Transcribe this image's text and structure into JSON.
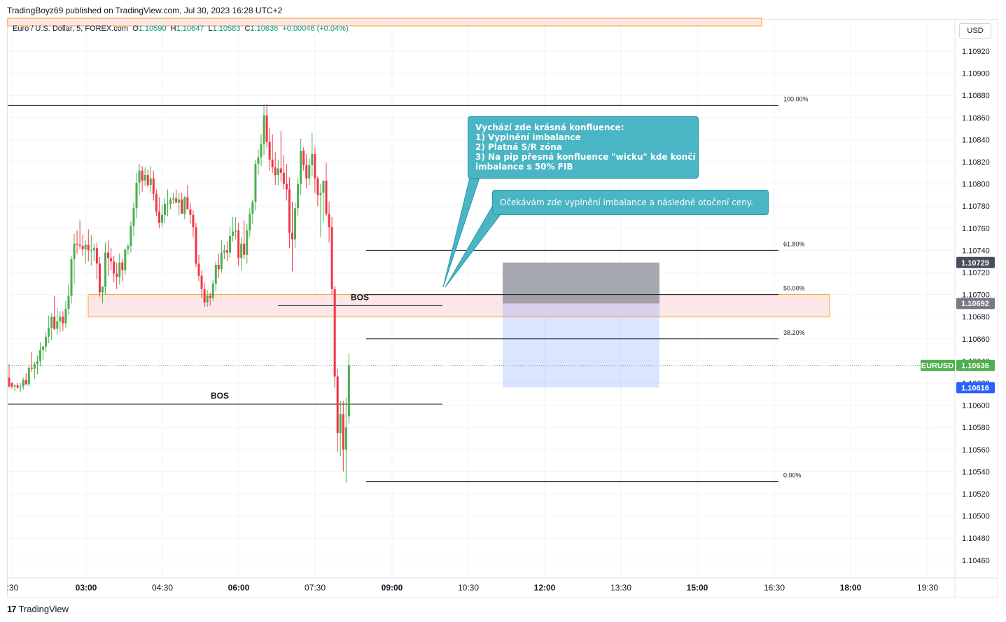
{
  "header": {
    "publisher_line": "TradingBoyz69 published on TradingView.com, Jul 30, 2023 16:28 UTC+2"
  },
  "legend": {
    "symbol": "Euro / U.S. Dollar, 5, FOREX.com",
    "o_label": "O",
    "o": "1.10590",
    "h_label": "H",
    "h": "1.10647",
    "l_label": "L",
    "l": "1.10583",
    "c_label": "C",
    "c": "1.10636",
    "change": "+0.00046 (+0.04%)"
  },
  "currency_button": "USD",
  "annotations": {
    "callout_1": {
      "lines": [
        "Vychází zde krásná konfluence:",
        "1) Vyplnění imbalance",
        "2) Platná S/R zóna",
        "3) Na pip přesná konfluence \"wicku\" kde končí",
        "imbalance s 50% FIB"
      ]
    },
    "callout_2": "Očekávám zde vyplnění imbalance a následné otočení ceny.",
    "bos_1": "BOS",
    "bos_2": "BOS"
  },
  "footer": {
    "brand": "TradingView",
    "logo_mark": "17"
  },
  "colors": {
    "up": "#4caf50",
    "down": "#f23645",
    "callout_bg": "#4ab5c4",
    "zone_fill": "#fde6e8",
    "zone_border": "#f5a623",
    "price_tag_current": "#4caf50",
    "price_tag_blue": "#2962ff",
    "price_tag_gray": "#787b86",
    "price_tag_dark": "#4a4e5a"
  },
  "chart_data": {
    "type": "candlestick",
    "symbol": "EURUSD",
    "interval": "5",
    "y_axis": {
      "range": [
        1.10445,
        1.1095
      ],
      "ticks": [
        "1.10920",
        "1.10900",
        "1.10880",
        "1.10860",
        "1.10840",
        "1.10820",
        "1.10800",
        "1.10780",
        "1.10760",
        "1.10740",
        "1.10720",
        "1.10700",
        "1.10680",
        "1.10660",
        "1.10640",
        "1.10620",
        "1.10600",
        "1.10580",
        "1.10560",
        "1.10540",
        "1.10520",
        "1.10500",
        "1.10480",
        "1.10460"
      ]
    },
    "x_axis": {
      "ticks": [
        ":30",
        "03:00",
        "04:30",
        "06:00",
        "07:30",
        "09:00",
        "10:30",
        "12:00",
        "13:30",
        "15:00",
        "16:30",
        "18:00",
        "19:30"
      ],
      "bold_ticks": [
        "03:00",
        "06:00",
        "09:00",
        "12:00",
        "15:00",
        "18:00"
      ]
    },
    "price_labels": [
      {
        "value": "1.10729",
        "color": "dark"
      },
      {
        "value": "1.10692",
        "color": "gray"
      },
      {
        "symbol": "EURUSD",
        "value": "1.10636",
        "color": "current"
      },
      {
        "value": "1.10616",
        "color": "blue"
      }
    ],
    "fib_levels": [
      {
        "label": "100.00%",
        "price": 1.10871
      },
      {
        "label": "61.80%",
        "price": 1.1074
      },
      {
        "label": "50.00%",
        "price": 1.107
      },
      {
        "label": "38.20%",
        "price": 1.1066
      },
      {
        "label": "0.00%",
        "price": 1.10531
      }
    ],
    "zones": [
      {
        "name": "top-zone",
        "from": 1.1095,
        "to": 1.10938
      },
      {
        "name": "sr-zone",
        "from": 1.107,
        "to": 1.10685
      }
    ],
    "trade_box": {
      "stop_top": 1.10729,
      "entry": 1.10692,
      "target": 1.10616
    },
    "bos_lines": [
      {
        "price": 1.1069
      },
      {
        "price": 1.10601
      }
    ],
    "candles": [
      [
        1.10625,
        1.10637,
        1.10616,
        1.10617
      ],
      [
        1.1062,
        1.10621,
        1.10615,
        1.10617
      ],
      [
        1.10617,
        1.10619,
        1.10613,
        1.10618
      ],
      [
        1.10618,
        1.1062,
        1.10615,
        1.10616
      ],
      [
        1.10616,
        1.1062,
        1.10612,
        1.10617
      ],
      [
        1.10617,
        1.10625,
        1.10614,
        1.10623
      ],
      [
        1.10623,
        1.10629,
        1.10618,
        1.10619
      ],
      [
        1.10619,
        1.10637,
        1.10617,
        1.10634
      ],
      [
        1.10634,
        1.10648,
        1.1063,
        1.10633
      ],
      [
        1.10633,
        1.10639,
        1.10624,
        1.10637
      ],
      [
        1.10637,
        1.10645,
        1.10628,
        1.1064
      ],
      [
        1.1064,
        1.10657,
        1.10635,
        1.1065
      ],
      [
        1.1065,
        1.10654,
        1.10641,
        1.10653
      ],
      [
        1.10653,
        1.10666,
        1.10648,
        1.10662
      ],
      [
        1.10662,
        1.10681,
        1.10656,
        1.1067
      ],
      [
        1.1067,
        1.10683,
        1.10659,
        1.1068
      ],
      [
        1.1068,
        1.10699,
        1.10668,
        1.10669
      ],
      [
        1.10669,
        1.10688,
        1.10664,
        1.10676
      ],
      [
        1.10676,
        1.10685,
        1.10666,
        1.1068
      ],
      [
        1.1068,
        1.10685,
        1.10667,
        1.10674
      ],
      [
        1.10674,
        1.10694,
        1.1067,
        1.10687
      ],
      [
        1.10687,
        1.10709,
        1.10682,
        1.10699
      ],
      [
        1.10699,
        1.10735,
        1.10692,
        1.10732
      ],
      [
        1.10732,
        1.10755,
        1.1071,
        1.10746
      ],
      [
        1.10746,
        1.10758,
        1.10737,
        1.10745
      ],
      [
        1.10745,
        1.10767,
        1.10741,
        1.10744
      ],
      [
        1.10744,
        1.10754,
        1.10735,
        1.10741
      ],
      [
        1.10741,
        1.10749,
        1.10728,
        1.10745
      ],
      [
        1.10745,
        1.10759,
        1.1073,
        1.1074
      ],
      [
        1.1074,
        1.10754,
        1.10726,
        1.1074
      ],
      [
        1.1074,
        1.10746,
        1.1073,
        1.10742
      ],
      [
        1.10742,
        1.10747,
        1.10714,
        1.10728
      ],
      [
        1.10728,
        1.10734,
        1.10698,
        1.10702
      ],
      [
        1.10702,
        1.10708,
        1.10692,
        1.10707
      ],
      [
        1.10707,
        1.10747,
        1.107,
        1.10738
      ],
      [
        1.10738,
        1.10749,
        1.10717,
        1.10733
      ],
      [
        1.10733,
        1.10742,
        1.10722,
        1.1073
      ],
      [
        1.1073,
        1.10735,
        1.10711,
        1.10719
      ],
      [
        1.10719,
        1.10729,
        1.10705,
        1.10716
      ],
      [
        1.10716,
        1.10737,
        1.10709,
        1.10729
      ],
      [
        1.10729,
        1.10732,
        1.10712,
        1.10722
      ],
      [
        1.10722,
        1.10741,
        1.10718,
        1.10741
      ],
      [
        1.10741,
        1.10746,
        1.10736,
        1.10744
      ],
      [
        1.10744,
        1.10766,
        1.10738,
        1.10762
      ],
      [
        1.10762,
        1.10783,
        1.10753,
        1.10778
      ],
      [
        1.10778,
        1.1081,
        1.10769,
        1.10801
      ],
      [
        1.10801,
        1.10818,
        1.1079,
        1.10812
      ],
      [
        1.10812,
        1.10816,
        1.10793,
        1.10803
      ],
      [
        1.10803,
        1.10815,
        1.10798,
        1.10808
      ],
      [
        1.10808,
        1.10813,
        1.10797,
        1.10799
      ],
      [
        1.10799,
        1.10816,
        1.10792,
        1.10805
      ],
      [
        1.10805,
        1.10812,
        1.10785,
        1.10791
      ],
      [
        1.10791,
        1.10795,
        1.10771,
        1.10775
      ],
      [
        1.10775,
        1.10788,
        1.1076,
        1.10765
      ],
      [
        1.10765,
        1.10781,
        1.10761,
        1.10772
      ],
      [
        1.10772,
        1.10787,
        1.10765,
        1.10782
      ],
      [
        1.10782,
        1.10795,
        1.10771,
        1.10782
      ],
      [
        1.10782,
        1.10788,
        1.10777,
        1.10786
      ],
      [
        1.10786,
        1.10792,
        1.10782,
        1.10787
      ],
      [
        1.10787,
        1.10795,
        1.10784,
        1.10783
      ],
      [
        1.10783,
        1.10792,
        1.10772,
        1.10786
      ],
      [
        1.10786,
        1.10792,
        1.10776,
        1.10773
      ],
      [
        1.10773,
        1.10789,
        1.10768,
        1.10788
      ],
      [
        1.10788,
        1.10799,
        1.1078,
        1.10777
      ],
      [
        1.10777,
        1.10783,
        1.10764,
        1.10772
      ],
      [
        1.10772,
        1.10776,
        1.10752,
        1.10761
      ],
      [
        1.10761,
        1.10765,
        1.10725,
        1.10728
      ],
      [
        1.10728,
        1.10736,
        1.10712,
        1.10717
      ],
      [
        1.10717,
        1.10722,
        1.10697,
        1.10705
      ],
      [
        1.10705,
        1.10711,
        1.10689,
        1.10693
      ],
      [
        1.10693,
        1.10704,
        1.10689,
        1.10699
      ],
      [
        1.10699,
        1.10702,
        1.1069,
        1.10697
      ],
      [
        1.10697,
        1.10713,
        1.10694,
        1.1071
      ],
      [
        1.1071,
        1.1073,
        1.10703,
        1.10727
      ],
      [
        1.10727,
        1.10737,
        1.10715,
        1.10723
      ],
      [
        1.10723,
        1.10749,
        1.1072,
        1.10738
      ],
      [
        1.10738,
        1.10745,
        1.10732,
        1.1074
      ],
      [
        1.1074,
        1.10748,
        1.1073,
        1.10738
      ],
      [
        1.10738,
        1.10762,
        1.10733,
        1.10753
      ],
      [
        1.10753,
        1.1077,
        1.10748,
        1.10757
      ],
      [
        1.10757,
        1.1077,
        1.1075,
        1.10758
      ],
      [
        1.10758,
        1.10765,
        1.10726,
        1.10733
      ],
      [
        1.10733,
        1.10752,
        1.10722,
        1.10746
      ],
      [
        1.10746,
        1.10767,
        1.10732,
        1.10736
      ],
      [
        1.10736,
        1.10764,
        1.10728,
        1.10758
      ],
      [
        1.10758,
        1.10778,
        1.10752,
        1.10773
      ],
      [
        1.10773,
        1.10786,
        1.10764,
        1.10784
      ],
      [
        1.10784,
        1.10822,
        1.10776,
        1.10818
      ],
      [
        1.10818,
        1.10831,
        1.10808,
        1.10824
      ],
      [
        1.10824,
        1.10845,
        1.10816,
        1.10836
      ],
      [
        1.10836,
        1.10872,
        1.10826,
        1.10862
      ],
      [
        1.10862,
        1.10872,
        1.10833,
        1.10838
      ],
      [
        1.10838,
        1.10851,
        1.10812,
        1.10822
      ],
      [
        1.10822,
        1.10845,
        1.1081,
        1.10815
      ],
      [
        1.10815,
        1.10829,
        1.10799,
        1.10808
      ],
      [
        1.10808,
        1.10822,
        1.10799,
        1.10814
      ],
      [
        1.10814,
        1.10848,
        1.10802,
        1.1081
      ],
      [
        1.1081,
        1.10826,
        1.10795,
        1.108
      ],
      [
        1.108,
        1.10818,
        1.10785,
        1.10795
      ],
      [
        1.10795,
        1.10806,
        1.10742,
        1.10756
      ],
      [
        1.10756,
        1.10784,
        1.10721,
        1.1075
      ],
      [
        1.1075,
        1.10783,
        1.10742,
        1.10778
      ],
      [
        1.10778,
        1.10805,
        1.10771,
        1.108
      ],
      [
        1.108,
        1.10841,
        1.1079,
        1.1083
      ],
      [
        1.1083,
        1.10833,
        1.10812,
        1.10817
      ],
      [
        1.10817,
        1.10827,
        1.10796,
        1.10805
      ],
      [
        1.10805,
        1.10823,
        1.10799,
        1.10817
      ],
      [
        1.10817,
        1.10846,
        1.10807,
        1.10827
      ],
      [
        1.10827,
        1.10833,
        1.10792,
        1.10805
      ],
      [
        1.10805,
        1.10807,
        1.1078,
        1.1079
      ],
      [
        1.1079,
        1.108,
        1.10752,
        1.10792
      ],
      [
        1.10792,
        1.10801,
        1.10766,
        1.10803
      ],
      [
        1.10803,
        1.10819,
        1.10771,
        1.10773
      ],
      [
        1.10773,
        1.10784,
        1.10747,
        1.10761
      ],
      [
        1.10761,
        1.1077,
        1.107,
        1.10705
      ],
      [
        1.10705,
        1.10708,
        1.10616,
        1.10626
      ],
      [
        1.10626,
        1.10633,
        1.10558,
        1.10575
      ],
      [
        1.10575,
        1.10604,
        1.10554,
        1.10592
      ],
      [
        1.10592,
        1.10604,
        1.1054,
        1.1056
      ],
      [
        1.1056,
        1.10607,
        1.1053,
        1.1058
      ],
      [
        1.1059,
        1.10647,
        1.10583,
        1.10636
      ]
    ]
  }
}
